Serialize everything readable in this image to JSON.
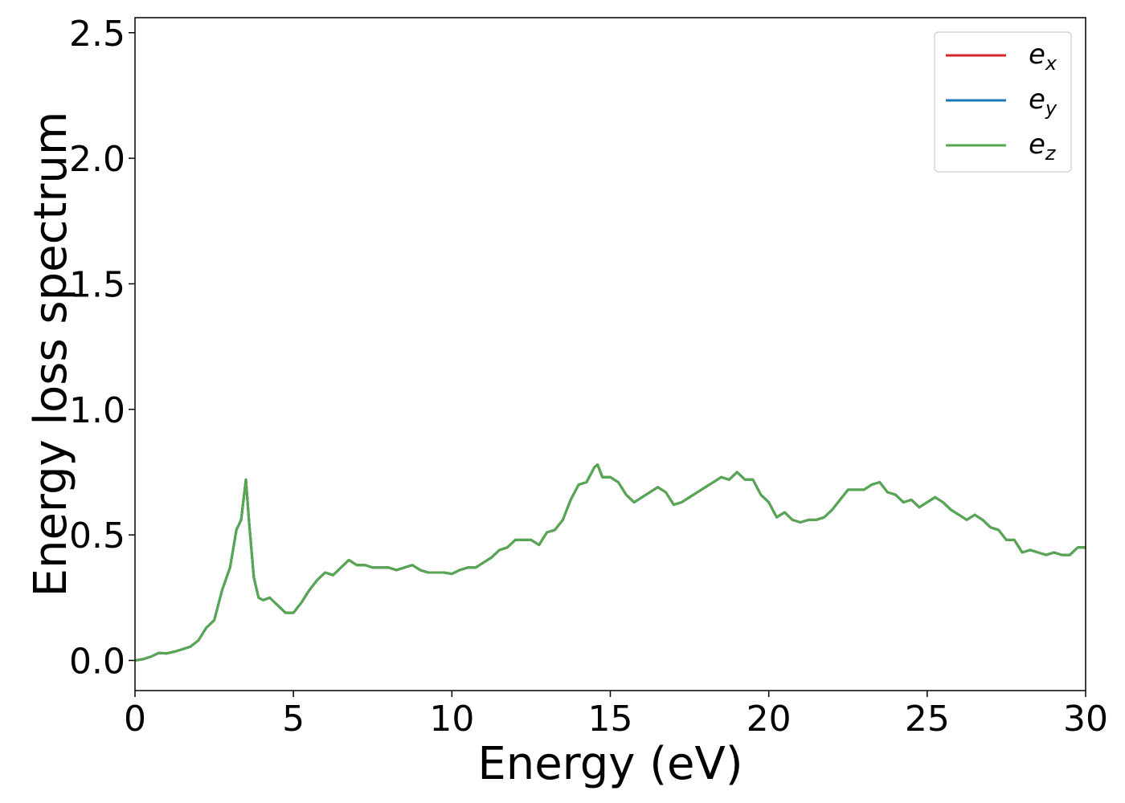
{
  "colors": {
    "ex": "#d62728",
    "ey": "#1f77b4",
    "ez": "#55a84f"
  },
  "chart_data": {
    "type": "line",
    "title": "",
    "xlabel": "Energy (eV)",
    "ylabel": "Energy loss spectrum",
    "xlim": [
      0,
      30
    ],
    "ylim": [
      -0.12,
      2.56
    ],
    "xticks": [
      0,
      5,
      10,
      15,
      20,
      25,
      30
    ],
    "yticks": [
      0.0,
      0.5,
      1.0,
      1.5,
      2.0,
      2.5
    ],
    "xtick_labels": [
      "0",
      "5",
      "10",
      "15",
      "20",
      "25",
      "30"
    ],
    "ytick_labels": [
      "0.0",
      "0.5",
      "1.0",
      "1.5",
      "2.0",
      "2.5"
    ],
    "grid": false,
    "legend_position": "top-right",
    "x": [
      0.0,
      0.25,
      0.5,
      0.75,
      1.0,
      1.25,
      1.5,
      1.75,
      2.0,
      2.25,
      2.5,
      2.75,
      3.0,
      3.2,
      3.35,
      3.5,
      3.6,
      3.75,
      3.9,
      4.05,
      4.25,
      4.5,
      4.75,
      5.0,
      5.25,
      5.5,
      5.75,
      6.0,
      6.25,
      6.5,
      6.75,
      7.0,
      7.25,
      7.5,
      7.75,
      8.0,
      8.25,
      8.5,
      8.75,
      9.0,
      9.25,
      9.5,
      9.75,
      10.0,
      10.25,
      10.5,
      10.75,
      11.0,
      11.25,
      11.5,
      11.75,
      12.0,
      12.25,
      12.5,
      12.75,
      13.0,
      13.25,
      13.5,
      13.75,
      14.0,
      14.25,
      14.5,
      14.6,
      14.75,
      15.0,
      15.25,
      15.5,
      15.75,
      16.0,
      16.25,
      16.5,
      16.75,
      17.0,
      17.25,
      17.5,
      17.75,
      18.0,
      18.25,
      18.5,
      18.75,
      19.0,
      19.25,
      19.5,
      19.75,
      20.0,
      20.25,
      20.5,
      20.75,
      21.0,
      21.25,
      21.5,
      21.75,
      22.0,
      22.25,
      22.5,
      22.75,
      23.0,
      23.25,
      23.5,
      23.75,
      24.0,
      24.25,
      24.5,
      24.75,
      25.0,
      25.25,
      25.5,
      25.75,
      26.0,
      26.25,
      26.5,
      26.75,
      27.0,
      27.25,
      27.5,
      27.75,
      28.0,
      28.25,
      28.5,
      28.75,
      29.0,
      29.25,
      29.5,
      29.75,
      30.0
    ],
    "series": [
      {
        "name": "e_x",
        "label_main": "e",
        "label_sub": "x",
        "color_key": "ex",
        "values": [
          0.0,
          0.005,
          0.015,
          0.03,
          0.028,
          0.035,
          0.045,
          0.055,
          0.08,
          0.13,
          0.16,
          0.28,
          0.37,
          0.52,
          0.56,
          0.72,
          0.55,
          0.33,
          0.25,
          0.24,
          0.25,
          0.22,
          0.19,
          0.19,
          0.23,
          0.28,
          0.32,
          0.35,
          0.34,
          0.37,
          0.4,
          0.38,
          0.38,
          0.37,
          0.37,
          0.37,
          0.36,
          0.37,
          0.38,
          0.36,
          0.35,
          0.35,
          0.35,
          0.345,
          0.36,
          0.37,
          0.37,
          0.39,
          0.41,
          0.44,
          0.45,
          0.48,
          0.48,
          0.48,
          0.46,
          0.51,
          0.52,
          0.56,
          0.64,
          0.7,
          0.71,
          0.77,
          0.78,
          0.73,
          0.73,
          0.71,
          0.66,
          0.63,
          0.65,
          0.67,
          0.69,
          0.67,
          0.62,
          0.63,
          0.65,
          0.67,
          0.69,
          0.71,
          0.73,
          0.72,
          0.75,
          0.72,
          0.72,
          0.66,
          0.63,
          0.57,
          0.59,
          0.56,
          0.55,
          0.56,
          0.56,
          0.57,
          0.6,
          0.64,
          0.68,
          0.68,
          0.68,
          0.7,
          0.71,
          0.67,
          0.66,
          0.63,
          0.64,
          0.61,
          0.63,
          0.65,
          0.63,
          0.6,
          0.58,
          0.56,
          0.58,
          0.56,
          0.53,
          0.52,
          0.48,
          0.48,
          0.43,
          0.44,
          0.43,
          0.42,
          0.43,
          0.42,
          0.42,
          0.45,
          0.45
        ]
      },
      {
        "name": "e_y",
        "label_main": "e",
        "label_sub": "y",
        "color_key": "ey",
        "values": [
          0.0,
          0.005,
          0.015,
          0.03,
          0.028,
          0.035,
          0.045,
          0.055,
          0.08,
          0.13,
          0.16,
          0.28,
          0.37,
          0.52,
          0.56,
          0.72,
          0.55,
          0.33,
          0.25,
          0.24,
          0.25,
          0.22,
          0.19,
          0.19,
          0.23,
          0.28,
          0.32,
          0.35,
          0.34,
          0.37,
          0.4,
          0.38,
          0.38,
          0.37,
          0.37,
          0.37,
          0.36,
          0.37,
          0.38,
          0.36,
          0.35,
          0.35,
          0.35,
          0.345,
          0.36,
          0.37,
          0.37,
          0.39,
          0.41,
          0.44,
          0.45,
          0.48,
          0.48,
          0.48,
          0.46,
          0.51,
          0.52,
          0.56,
          0.64,
          0.7,
          0.71,
          0.77,
          0.78,
          0.73,
          0.73,
          0.71,
          0.66,
          0.63,
          0.65,
          0.67,
          0.69,
          0.67,
          0.62,
          0.63,
          0.65,
          0.67,
          0.69,
          0.71,
          0.73,
          0.72,
          0.75,
          0.72,
          0.72,
          0.66,
          0.63,
          0.57,
          0.59,
          0.56,
          0.55,
          0.56,
          0.56,
          0.57,
          0.6,
          0.64,
          0.68,
          0.68,
          0.68,
          0.7,
          0.71,
          0.67,
          0.66,
          0.63,
          0.64,
          0.61,
          0.63,
          0.65,
          0.63,
          0.6,
          0.58,
          0.56,
          0.58,
          0.56,
          0.53,
          0.52,
          0.48,
          0.48,
          0.43,
          0.44,
          0.43,
          0.42,
          0.43,
          0.42,
          0.42,
          0.45,
          0.45
        ]
      },
      {
        "name": "e_z",
        "label_main": "e",
        "label_sub": "z",
        "color_key": "ez",
        "values": [
          0.0,
          0.005,
          0.015,
          0.03,
          0.028,
          0.035,
          0.045,
          0.055,
          0.08,
          0.13,
          0.16,
          0.28,
          0.37,
          0.52,
          0.56,
          0.72,
          0.55,
          0.33,
          0.25,
          0.24,
          0.25,
          0.22,
          0.19,
          0.19,
          0.23,
          0.28,
          0.32,
          0.35,
          0.34,
          0.37,
          0.4,
          0.38,
          0.38,
          0.37,
          0.37,
          0.37,
          0.36,
          0.37,
          0.38,
          0.36,
          0.35,
          0.35,
          0.35,
          0.345,
          0.36,
          0.37,
          0.37,
          0.39,
          0.41,
          0.44,
          0.45,
          0.48,
          0.48,
          0.48,
          0.46,
          0.51,
          0.52,
          0.56,
          0.64,
          0.7,
          0.71,
          0.77,
          0.78,
          0.73,
          0.73,
          0.71,
          0.66,
          0.63,
          0.65,
          0.67,
          0.69,
          0.67,
          0.62,
          0.63,
          0.65,
          0.67,
          0.69,
          0.71,
          0.73,
          0.72,
          0.75,
          0.72,
          0.72,
          0.66,
          0.63,
          0.57,
          0.59,
          0.56,
          0.55,
          0.56,
          0.56,
          0.57,
          0.6,
          0.64,
          0.68,
          0.68,
          0.68,
          0.7,
          0.71,
          0.67,
          0.66,
          0.63,
          0.64,
          0.61,
          0.63,
          0.65,
          0.63,
          0.6,
          0.58,
          0.56,
          0.58,
          0.56,
          0.53,
          0.52,
          0.48,
          0.48,
          0.43,
          0.44,
          0.43,
          0.42,
          0.43,
          0.42,
          0.42,
          0.45,
          0.45
        ]
      }
    ]
  }
}
